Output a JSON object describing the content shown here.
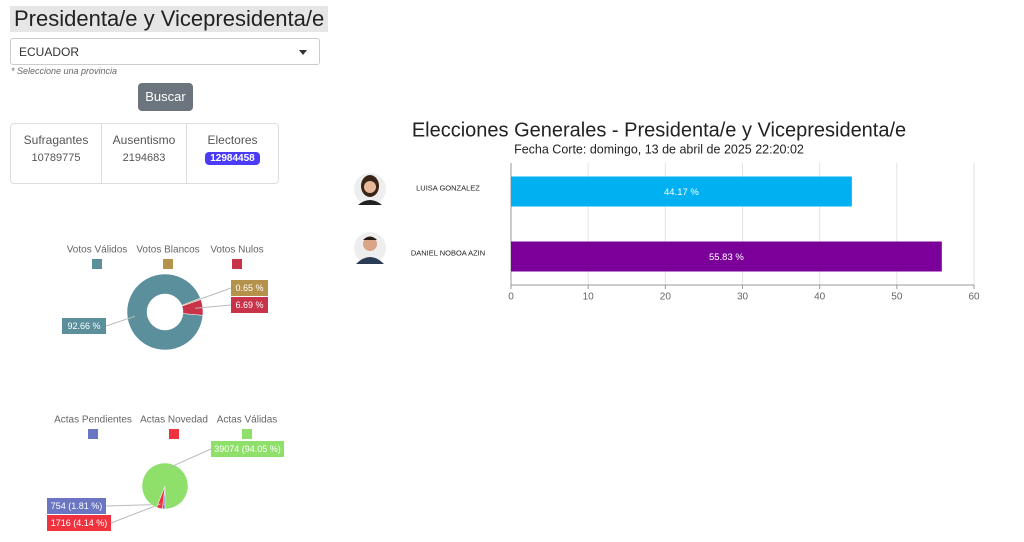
{
  "header": {
    "title": "Presidenta/e y Vicepresidenta/e",
    "select": "ECUADOR",
    "hint": "* Seleccione una provincia",
    "button": "Buscar"
  },
  "stats": [
    {
      "label": "Sufragantes",
      "value": 10789775
    },
    {
      "label": "Ausentismo",
      "value": 2194683
    },
    {
      "label": "Electores",
      "value": 12984458
    }
  ],
  "chart_data": [
    {
      "type": "donut",
      "categories": [
        "Votos Válidos",
        "Votos Blancos",
        "Votos Nulos"
      ],
      "values": [
        92.66,
        0.65,
        6.69
      ],
      "value_labels": [
        "92.66 %",
        "0.65 %",
        "6.69 %"
      ],
      "colors": [
        "#5a8f9b",
        "#b5924c",
        "#c8334a"
      ],
      "legend": "top"
    },
    {
      "type": "pie",
      "categories": [
        "Actas Pendientes",
        "Actas Novedad",
        "Actas Válidas"
      ],
      "values": [
        754,
        1716,
        39074
      ],
      "value_labels": [
        "754 (1.81 %)",
        "1716 (4.14 %)",
        "39074 (94.05 %)"
      ],
      "colors": [
        "#6a76c1",
        "#f0323f",
        "#8fe06a"
      ],
      "legend": "top"
    },
    {
      "type": "hbar",
      "title": "Elecciones Generales - Presidenta/e y Vicepresidenta/e",
      "subtitle": "Fecha Corte: domingo, 13 de abril de 2025 22:20:02",
      "categories": [
        "LUISA GONZALEZ",
        "DANIEL NOBOA AZIN"
      ],
      "values": [
        44.17,
        55.83
      ],
      "value_labels": [
        "44.17 %",
        "55.83 %"
      ],
      "colors": [
        "#00b0f0",
        "#7b0099"
      ],
      "xlim": [
        0,
        60
      ],
      "xticks": [
        0,
        10,
        20,
        30,
        40,
        50,
        60
      ],
      "grid": true
    }
  ]
}
